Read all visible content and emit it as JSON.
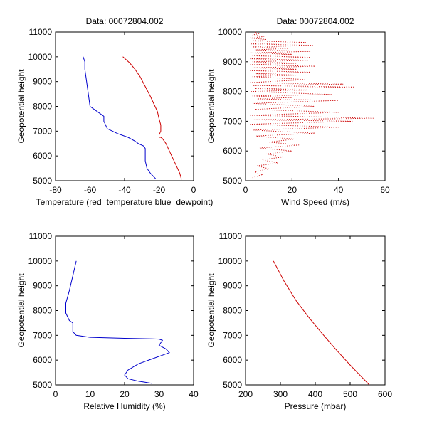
{
  "chart_data": [
    {
      "type": "line",
      "title": "Data: 00072804.002",
      "xlabel": "Temperature (red=temperature blue=dewpoint)",
      "ylabel": "Geopotential height",
      "xlim": [
        -80,
        0
      ],
      "ylim": [
        5000,
        11000
      ],
      "xticks": [
        -80,
        -60,
        -40,
        -20,
        0
      ],
      "yticks": [
        5000,
        6000,
        7000,
        8000,
        9000,
        10000,
        11000
      ],
      "grid": false,
      "series": [
        {
          "name": "temperature",
          "color": "#cc0000",
          "style": "line",
          "x": [
            -7,
            -8,
            -10,
            -12,
            -14,
            -16,
            -18,
            -19,
            -20,
            -20,
            -19,
            -19,
            -20,
            -21,
            -23,
            -25,
            -28,
            -31,
            -34,
            -37,
            -41
          ],
          "y": [
            5050,
            5300,
            5600,
            5900,
            6200,
            6500,
            6700,
            6750,
            6750,
            6850,
            7000,
            7250,
            7500,
            7800,
            8100,
            8400,
            8800,
            9200,
            9500,
            9750,
            10000
          ]
        },
        {
          "name": "dewpoint",
          "color": "#0000cc",
          "style": "line",
          "x": [
            -22,
            -25,
            -27,
            -28,
            -28,
            -29,
            -32,
            -34,
            -38,
            -44,
            -50,
            -52,
            -52,
            -55,
            -60,
            -61,
            -62,
            -63,
            -63,
            -64
          ],
          "y": [
            5080,
            5300,
            5500,
            5800,
            6300,
            6400,
            6500,
            6600,
            6750,
            6900,
            7100,
            7400,
            7600,
            7750,
            8000,
            8500,
            9000,
            9500,
            9800,
            10000
          ]
        }
      ]
    },
    {
      "type": "line",
      "title": "Data: 00072804.002",
      "xlabel": "Wind Speed (m/s)",
      "ylabel": "Geopotential height",
      "xlim": [
        0,
        60
      ],
      "ylim": [
        5000,
        10000
      ],
      "xticks": [
        0,
        20,
        40,
        60
      ],
      "yticks": [
        5000,
        6000,
        7000,
        8000,
        9000,
        10000
      ],
      "grid": false,
      "series": [
        {
          "name": "wind-speed",
          "color": "#cc0000",
          "style": "dots",
          "x": [
            3,
            7,
            4,
            10,
            5,
            14,
            7,
            16,
            9,
            20,
            6,
            23,
            10,
            21,
            4,
            30,
            3,
            40,
            2,
            46,
            3,
            55,
            2,
            40,
            4,
            30,
            3,
            40,
            5,
            20,
            3,
            37,
            2,
            27,
            4,
            47,
            3,
            42,
            2,
            26,
            3,
            22,
            4,
            28,
            2,
            22,
            3,
            30,
            2,
            22,
            3,
            27,
            2,
            28,
            3,
            20,
            2,
            28,
            4,
            18,
            3,
            29,
            2,
            26,
            3,
            9,
            2,
            8,
            3,
            6,
            4
          ],
          "y": [
            5100,
            5200,
            5300,
            5400,
            5500,
            5600,
            5700,
            5800,
            5900,
            6000,
            6100,
            6200,
            6300,
            6400,
            6500,
            6600,
            6700,
            6800,
            6900,
            7000,
            7050,
            7100,
            7200,
            7300,
            7400,
            7500,
            7600,
            7700,
            7750,
            7800,
            7850,
            7900,
            8000,
            8050,
            8100,
            8150,
            8200,
            8250,
            8300,
            8400,
            8500,
            8550,
            8600,
            8650,
            8700,
            8750,
            8800,
            8850,
            8900,
            8950,
            9000,
            9050,
            9100,
            9150,
            9200,
            9250,
            9300,
            9350,
            9400,
            9450,
            9500,
            9550,
            9600,
            9650,
            9700,
            9750,
            9800,
            9850,
            9900,
            9950,
            10000
          ]
        }
      ]
    },
    {
      "type": "line",
      "title": "",
      "xlabel": "Relative Humidity (%)",
      "ylabel": "Geopotential height",
      "xlim": [
        0,
        40
      ],
      "ylim": [
        5000,
        11000
      ],
      "xticks": [
        0,
        10,
        20,
        30,
        40
      ],
      "yticks": [
        5000,
        6000,
        7000,
        8000,
        9000,
        10000,
        11000
      ],
      "grid": false,
      "series": [
        {
          "name": "relative-humidity",
          "color": "#0000cc",
          "style": "line",
          "x": [
            28,
            24,
            21,
            20,
            21,
            24,
            28,
            31,
            33,
            32,
            30,
            31,
            30,
            28,
            20,
            10,
            6,
            5,
            5,
            4,
            3,
            3,
            4,
            5,
            6
          ],
          "y": [
            5060,
            5150,
            5250,
            5400,
            5600,
            5850,
            6050,
            6200,
            6300,
            6450,
            6600,
            6800,
            6850,
            6860,
            6880,
            6920,
            7000,
            7150,
            7500,
            7600,
            7900,
            8300,
            8800,
            9400,
            10000
          ]
        }
      ]
    },
    {
      "type": "line",
      "title": "",
      "xlabel": "Pressure (mbar)",
      "ylabel": "Geopotential height",
      "xlim": [
        200,
        600
      ],
      "ylim": [
        5000,
        11000
      ],
      "xticks": [
        200,
        300,
        400,
        500,
        600
      ],
      "yticks": [
        5000,
        6000,
        7000,
        8000,
        9000,
        10000,
        11000
      ],
      "grid": false,
      "series": [
        {
          "name": "pressure",
          "color": "#cc0000",
          "style": "line",
          "x": [
            555,
            500,
            455,
            415,
            380,
            345,
            310,
            280
          ],
          "y": [
            5000,
            5800,
            6500,
            7150,
            7750,
            8400,
            9200,
            10000
          ]
        }
      ]
    }
  ]
}
